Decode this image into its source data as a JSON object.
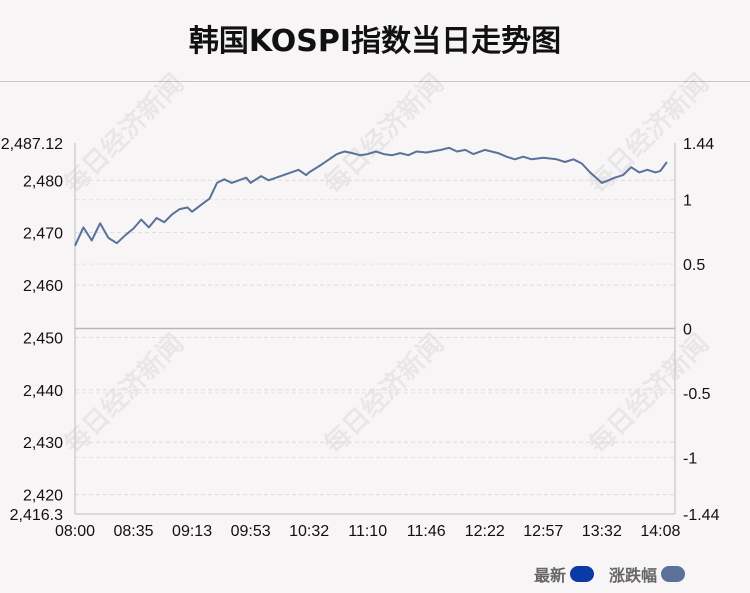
{
  "title": "韩国KOSPI指数当日走势图",
  "watermark": "每日经济新闻",
  "legend": {
    "latest_label": "最新",
    "latest_color": "#0b3aa6",
    "change_label": "涨跌幅",
    "change_color": "#5a7199"
  },
  "chart_data": {
    "type": "line",
    "x_ticks": [
      "08:00",
      "08:35",
      "09:13",
      "09:53",
      "10:32",
      "11:10",
      "11:46",
      "12:22",
      "12:57",
      "13:32",
      "14:08"
    ],
    "left_axis": {
      "ticks": [
        "2,487.12",
        "2,480",
        "2,470",
        "2,460",
        "2,450",
        "2,440",
        "2,430",
        "2,420",
        "2,416.3"
      ],
      "tick_values": [
        2487.12,
        2480,
        2470,
        2460,
        2450,
        2440,
        2430,
        2420,
        2416.3
      ],
      "ylim": [
        2416.3,
        2487.12
      ]
    },
    "right_axis": {
      "ticks": [
        "1.44",
        "1",
        "0.5",
        "0",
        "-0.5",
        "-1",
        "-1.44"
      ],
      "tick_values": [
        1.44,
        1,
        0.5,
        0,
        -0.5,
        -1,
        -1.44
      ],
      "ylim": [
        -1.44,
        1.44
      ]
    },
    "baseline": 2451.8,
    "grid": "horizontal dashed",
    "line_color": "#5a7199",
    "series": [
      {
        "x": [
          "08:00",
          "08:05",
          "08:10",
          "08:15",
          "08:20",
          "08:25",
          "08:30",
          "08:35",
          "08:40",
          "08:45",
          "08:50",
          "08:55",
          "09:00",
          "09:05",
          "09:10",
          "09:13",
          "09:20",
          "09:25",
          "09:30",
          "09:35",
          "09:40",
          "09:45",
          "09:50",
          "09:53",
          "10:00",
          "10:05",
          "10:10",
          "10:15",
          "10:20",
          "10:25",
          "10:30",
          "10:32",
          "10:40",
          "10:45",
          "10:50",
          "10:55",
          "11:00",
          "11:05",
          "11:10",
          "11:15",
          "11:20",
          "11:25",
          "11:30",
          "11:35",
          "11:40",
          "11:46",
          "11:55",
          "12:00",
          "12:05",
          "12:10",
          "12:15",
          "12:22",
          "12:30",
          "12:35",
          "12:40",
          "12:45",
          "12:50",
          "12:57",
          "13:05",
          "13:10",
          "13:15",
          "13:20",
          "13:25",
          "13:32",
          "13:40",
          "13:45",
          "13:50",
          "13:55",
          "14:00",
          "14:05",
          "14:08",
          "14:12"
        ],
        "y": [
          2467.5,
          2471.0,
          2468.5,
          2471.8,
          2469.0,
          2468.0,
          2469.5,
          2470.8,
          2472.5,
          2471.0,
          2472.8,
          2472.0,
          2473.5,
          2474.5,
          2474.8,
          2474.0,
          2475.5,
          2476.5,
          2479.5,
          2480.2,
          2479.5,
          2480.0,
          2480.5,
          2479.5,
          2480.8,
          2480.0,
          2480.5,
          2481.0,
          2481.5,
          2482.0,
          2481.0,
          2481.5,
          2483.0,
          2484.0,
          2485.0,
          2485.5,
          2485.2,
          2484.8,
          2485.0,
          2485.5,
          2485.0,
          2484.8,
          2485.2,
          2484.8,
          2485.5,
          2485.3,
          2485.8,
          2486.2,
          2485.5,
          2485.8,
          2485.0,
          2485.8,
          2485.2,
          2484.5,
          2484.0,
          2484.5,
          2484.0,
          2484.3,
          2484.0,
          2483.5,
          2484.0,
          2483.2,
          2481.5,
          2479.5,
          2480.5,
          2481.0,
          2482.5,
          2481.5,
          2482.0,
          2481.5,
          2481.8,
          2483.5
        ]
      }
    ]
  }
}
